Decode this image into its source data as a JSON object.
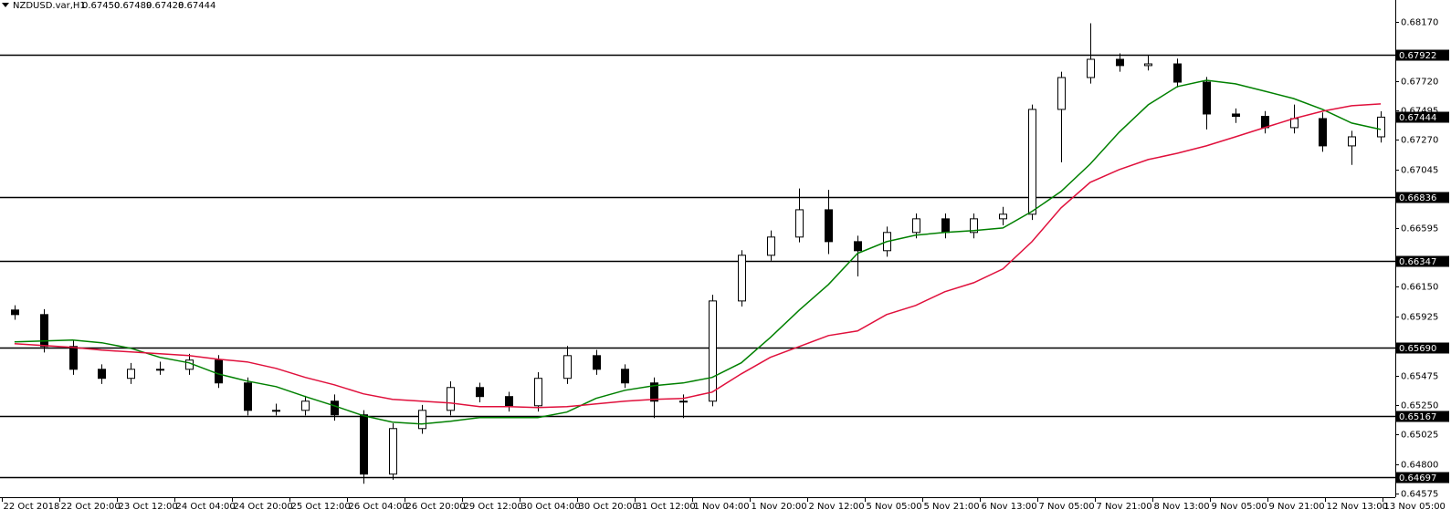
{
  "chart_data": {
    "type": "candlestick",
    "header": {
      "symbol": "NZDUSD.var,H1",
      "open": "0.67450",
      "high": "0.67489",
      "low": "0.67428",
      "close": "0.67444"
    },
    "ylim": [
      0.64547,
      0.68337
    ],
    "yticks": [
      {
        "value": 0.6817,
        "label": "0.68170"
      },
      {
        "value": 0.6772,
        "label": "0.67720"
      },
      0.67495,
      {
        "value": 0.6727,
        "label": "0.67270"
      },
      0.67045,
      0.66595,
      {
        "value": 0.6615,
        "label": "0.66150"
      },
      0.65925,
      0.65475,
      {
        "value": 0.6525,
        "label": "0.65250"
      },
      0.65025,
      {
        "value": 0.648,
        "label": "0.64800"
      },
      0.64575
    ],
    "levels": [
      0.67922,
      0.66836,
      0.66347,
      {
        "value": 0.6569,
        "label": "0.65690"
      },
      0.65167,
      0.64697
    ],
    "current": 0.67444,
    "time_labels": [
      "22 Oct 2018",
      "22 Oct 20:00",
      "23 Oct 12:00",
      "24 Oct 04:00",
      "24 Oct 20:00",
      "25 Oct 12:00",
      "26 Oct 04:00",
      "26 Oct 20:00",
      "29 Oct 12:00",
      "30 Oct 04:00",
      "30 Oct 20:00",
      "31 Oct 12:00",
      "1 Nov 04:00",
      "1 Nov 20:00",
      "2 Nov 12:00",
      "5 Nov 05:00",
      "5 Nov 21:00",
      "6 Nov 13:00",
      "7 Nov 05:00",
      "7 Nov 21:00",
      "8 Nov 13:00",
      "9 Nov 05:00",
      "9 Nov 21:00",
      "12 Nov 13:00",
      "13 Nov 05:00"
    ],
    "candles": {
      "open": [
        0.65974,
        0.65939,
        0.65696,
        0.65522,
        0.65453,
        0.65522,
        0.65522,
        0.65592,
        0.65418,
        0.65209,
        0.65209,
        0.65279,
        0.65175,
        0.64723,
        0.6507,
        0.65209,
        0.65383,
        0.65314,
        0.65244,
        0.65453,
        0.65626,
        0.65522,
        0.65418,
        0.65279,
        0.65279,
        0.66043,
        0.66391,
        0.6653,
        0.66738,
        0.66495,
        0.66426,
        0.66565,
        0.66669,
        0.66565,
        0.66669,
        0.66704,
        0.67503,
        0.67746,
        0.67885,
        0.67837,
        0.6785,
        0.67711,
        0.67468,
        0.6745,
        0.67364,
        0.67433,
        0.67225,
        0.67294
      ],
      "high": [
        0.6601,
        0.6598,
        0.6574,
        0.6556,
        0.6557,
        0.6558,
        0.6564,
        0.6563,
        0.6546,
        0.6526,
        0.6532,
        0.6533,
        0.6521,
        0.6511,
        0.6525,
        0.6543,
        0.6542,
        0.6535,
        0.655,
        0.657,
        0.6567,
        0.6556,
        0.6546,
        0.6533,
        0.6609,
        0.6643,
        0.6658,
        0.669,
        0.6689,
        0.6654,
        0.6661,
        0.6671,
        0.6671,
        0.6671,
        0.6676,
        0.6754,
        0.6779,
        0.6816,
        0.6793,
        0.6792,
        0.6789,
        0.6775,
        0.6751,
        0.6749,
        0.6754,
        0.6748,
        0.6734,
        0.67489
      ],
      "low": [
        0.659,
        0.6565,
        0.6548,
        0.6541,
        0.6541,
        0.6548,
        0.6548,
        0.6538,
        0.6517,
        0.6517,
        0.6517,
        0.6513,
        0.6465,
        0.6468,
        0.6503,
        0.6517,
        0.6527,
        0.652,
        0.652,
        0.6541,
        0.6548,
        0.6538,
        0.6515,
        0.6515,
        0.6524,
        0.66,
        0.6635,
        0.6649,
        0.664,
        0.6623,
        0.6638,
        0.6652,
        0.6652,
        0.6652,
        0.6662,
        0.6666,
        0.671,
        0.677,
        0.6779,
        0.678,
        0.6767,
        0.6735,
        0.674,
        0.6732,
        0.6732,
        0.6718,
        0.6708,
        0.6725
      ],
      "close": [
        0.65939,
        0.65696,
        0.65522,
        0.65453,
        0.65522,
        0.65522,
        0.65592,
        0.65418,
        0.65209,
        0.65209,
        0.65279,
        0.65175,
        0.64723,
        0.6507,
        0.65209,
        0.65383,
        0.65314,
        0.65244,
        0.65453,
        0.65626,
        0.65522,
        0.65418,
        0.65279,
        0.65279,
        0.66043,
        0.66391,
        0.6653,
        0.66738,
        0.66495,
        0.66426,
        0.66565,
        0.66669,
        0.66565,
        0.66669,
        0.66704,
        0.67503,
        0.67746,
        0.67885,
        0.67837,
        0.6785,
        0.67711,
        0.67468,
        0.6745,
        0.67364,
        0.67433,
        0.67225,
        0.67294,
        0.67444
      ]
    },
    "lines": [
      {
        "color": "#008000",
        "values": [
          0.65731,
          0.65738,
          0.65745,
          0.65724,
          0.65682,
          0.65613,
          0.65571,
          0.65487,
          0.65432,
          0.6539,
          0.65314,
          0.65244,
          0.65168,
          0.65119,
          0.65105,
          0.65126,
          0.65154,
          0.65154,
          0.65154,
          0.65196,
          0.653,
          0.65362,
          0.65397,
          0.65418,
          0.6546,
          0.65571,
          0.65765,
          0.65974,
          0.66169,
          0.66405,
          0.66495,
          0.66544,
          0.66565,
          0.66579,
          0.66599,
          0.66725,
          0.66877,
          0.67086,
          0.67329,
          0.67538,
          0.67677,
          0.67725,
          0.67698,
          0.67642,
          0.67586,
          0.67503,
          0.67399,
          0.6735
        ]
      },
      {
        "color": "#e0103c",
        "values": [
          0.65717,
          0.65703,
          0.65689,
          0.65668,
          0.65654,
          0.6564,
          0.65626,
          0.65599,
          0.65578,
          0.65529,
          0.6546,
          0.65404,
          0.65335,
          0.65293,
          0.65279,
          0.65265,
          0.65237,
          0.65237,
          0.6523,
          0.65237,
          0.65258,
          0.65279,
          0.65293,
          0.653,
          0.65348,
          0.65487,
          0.65613,
          0.65696,
          0.65779,
          0.65814,
          0.65939,
          0.66009,
          0.66113,
          0.66182,
          0.66287,
          0.66495,
          0.66752,
          0.66947,
          0.67044,
          0.67121,
          0.67169,
          0.67225,
          0.67294,
          0.67364,
          0.67433,
          0.67489,
          0.67531,
          0.67545
        ]
      }
    ]
  }
}
